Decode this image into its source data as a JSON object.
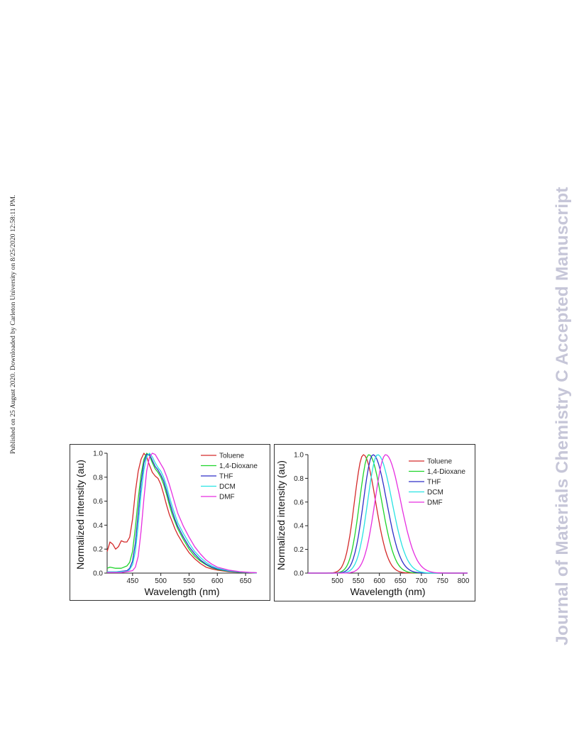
{
  "sidebar_left": {
    "text": "Published on 25 August 2020. Downloaded by Carleton University on 8/25/2020 12:58:11 PM."
  },
  "sidebar_right": {
    "text": "Journal of Materials Chemistry C Accepted Manuscript"
  },
  "colors": {
    "Toluene": "#d42a2a",
    "1,4-Dioxane": "#1ed42a",
    "THF": "#2e2ec8",
    "DCM": "#27e3e3",
    "DMF": "#e62ee0"
  },
  "chart_data": [
    {
      "type": "line",
      "xlabel": "Wavelength (nm)",
      "ylabel": "Normalized intensity (au)",
      "xlim": [
        405,
        670
      ],
      "ylim": [
        0,
        1.0
      ],
      "xticks": [
        450,
        500,
        550,
        600,
        650
      ],
      "yticks": [
        0.0,
        0.2,
        0.4,
        0.6,
        0.8,
        1.0
      ],
      "ytick_labels": [
        "0.0",
        "0.2",
        "0.4",
        "0.6",
        "0.8",
        "1.0"
      ],
      "legend_position": "top-right",
      "series": [
        {
          "name": "Toluene",
          "color": "#d42a2a",
          "x": [
            405,
            410,
            415,
            420,
            425,
            430,
            435,
            440,
            445,
            450,
            455,
            460,
            465,
            470,
            475,
            480,
            485,
            490,
            495,
            500,
            505,
            510,
            515,
            520,
            525,
            530,
            540,
            550,
            560,
            570,
            580,
            590,
            600,
            620,
            640,
            660,
            670
          ],
          "y": [
            0.18,
            0.26,
            0.24,
            0.2,
            0.22,
            0.27,
            0.26,
            0.26,
            0.3,
            0.45,
            0.68,
            0.85,
            0.95,
            1.0,
            0.97,
            0.9,
            0.84,
            0.81,
            0.79,
            0.74,
            0.66,
            0.57,
            0.49,
            0.43,
            0.37,
            0.32,
            0.24,
            0.17,
            0.12,
            0.08,
            0.05,
            0.035,
            0.025,
            0.012,
            0.006,
            0.003,
            0.002
          ]
        },
        {
          "name": "1,4-Dioxane",
          "color": "#1ed42a",
          "x": [
            405,
            410,
            420,
            430,
            440,
            445,
            450,
            455,
            460,
            465,
            470,
            475,
            480,
            485,
            490,
            495,
            500,
            505,
            510,
            515,
            520,
            525,
            530,
            540,
            550,
            560,
            570,
            580,
            590,
            600,
            620,
            640,
            660,
            670
          ],
          "y": [
            0.04,
            0.05,
            0.04,
            0.04,
            0.06,
            0.09,
            0.18,
            0.38,
            0.62,
            0.82,
            0.95,
            1.0,
            0.98,
            0.92,
            0.87,
            0.84,
            0.8,
            0.74,
            0.66,
            0.57,
            0.49,
            0.43,
            0.37,
            0.28,
            0.2,
            0.14,
            0.1,
            0.07,
            0.045,
            0.03,
            0.015,
            0.007,
            0.003,
            0.002
          ]
        },
        {
          "name": "THF",
          "color": "#2e2ec8",
          "x": [
            405,
            420,
            440,
            445,
            450,
            455,
            460,
            465,
            470,
            475,
            480,
            485,
            490,
            495,
            500,
            505,
            510,
            515,
            520,
            525,
            530,
            540,
            550,
            560,
            570,
            580,
            590,
            600,
            620,
            640,
            660,
            670
          ],
          "y": [
            0.01,
            0.01,
            0.02,
            0.04,
            0.1,
            0.25,
            0.5,
            0.75,
            0.92,
            0.99,
            0.99,
            0.94,
            0.89,
            0.86,
            0.82,
            0.77,
            0.69,
            0.6,
            0.52,
            0.45,
            0.39,
            0.3,
            0.22,
            0.16,
            0.11,
            0.075,
            0.05,
            0.035,
            0.017,
            0.008,
            0.004,
            0.002
          ]
        },
        {
          "name": "DCM",
          "color": "#27e3e3",
          "x": [
            405,
            420,
            440,
            445,
            450,
            455,
            460,
            465,
            470,
            475,
            480,
            485,
            490,
            495,
            500,
            505,
            510,
            515,
            520,
            525,
            530,
            540,
            550,
            560,
            570,
            580,
            590,
            600,
            620,
            640,
            660,
            670
          ],
          "y": [
            0.01,
            0.01,
            0.015,
            0.03,
            0.07,
            0.18,
            0.4,
            0.66,
            0.86,
            0.97,
            1.0,
            0.97,
            0.92,
            0.88,
            0.85,
            0.8,
            0.73,
            0.64,
            0.56,
            0.49,
            0.42,
            0.33,
            0.25,
            0.18,
            0.13,
            0.09,
            0.06,
            0.04,
            0.02,
            0.009,
            0.004,
            0.002
          ]
        },
        {
          "name": "DMF",
          "color": "#e62ee0",
          "x": [
            405,
            430,
            450,
            455,
            460,
            465,
            470,
            475,
            480,
            485,
            490,
            495,
            500,
            505,
            510,
            515,
            520,
            525,
            530,
            540,
            550,
            560,
            570,
            580,
            590,
            600,
            620,
            640,
            660,
            670
          ],
          "y": [
            0.005,
            0.005,
            0.02,
            0.05,
            0.14,
            0.35,
            0.62,
            0.85,
            0.97,
            1.0,
            0.99,
            0.95,
            0.91,
            0.87,
            0.81,
            0.74,
            0.66,
            0.58,
            0.5,
            0.39,
            0.3,
            0.22,
            0.16,
            0.11,
            0.075,
            0.05,
            0.025,
            0.012,
            0.005,
            0.003
          ]
        }
      ]
    },
    {
      "type": "line",
      "xlabel": "Wavelength (nm)",
      "ylabel": "Normalized intensity (au)",
      "xlim": [
        430,
        810
      ],
      "ylim": [
        0,
        1.0
      ],
      "xticks": [
        500,
        550,
        600,
        650,
        700,
        750,
        800
      ],
      "yticks": [
        0.0,
        0.2,
        0.4,
        0.6,
        0.8,
        1.0
      ],
      "ytick_labels": [
        "0.0",
        "0.2",
        "0.4",
        "0.6",
        "0.8",
        "1.0"
      ],
      "legend_position": "top-right",
      "series": [
        {
          "name": "Toluene",
          "color": "#d42a2a",
          "center": 562,
          "fwhm_left": 50,
          "fwhm_right": 68
        },
        {
          "name": "1,4-Dioxane",
          "color": "#1ed42a",
          "center": 575,
          "fwhm_left": 52,
          "fwhm_right": 72
        },
        {
          "name": "THF",
          "color": "#2e2ec8",
          "center": 585,
          "fwhm_left": 54,
          "fwhm_right": 76
        },
        {
          "name": "DCM",
          "color": "#27e3e3",
          "center": 596,
          "fwhm_left": 56,
          "fwhm_right": 80
        },
        {
          "name": "DMF",
          "color": "#e62ee0",
          "center": 615,
          "fwhm_left": 60,
          "fwhm_right": 84
        }
      ]
    }
  ]
}
